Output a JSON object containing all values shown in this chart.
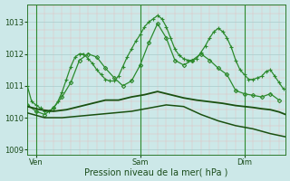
{
  "title": "Pression niveau de la mer( hPa )",
  "bg_color": "#cce8e8",
  "minor_grid_color": "#e8b8b8",
  "major_grid_color": "#aacccc",
  "ylim": [
    1008.85,
    1013.55
  ],
  "yticks": [
    1009,
    1010,
    1011,
    1012,
    1013
  ],
  "xlim": [
    0,
    119
  ],
  "xtick_labels": [
    "Ven",
    "Sam",
    "Dim"
  ],
  "xtick_positions": [
    4,
    52,
    100
  ],
  "vline_x": [
    4,
    52,
    100
  ],
  "series": [
    {
      "x": [
        0,
        2,
        4,
        6,
        8,
        10,
        12,
        14,
        16,
        18,
        20,
        22,
        24,
        26,
        28,
        30,
        32,
        34,
        36,
        38,
        40,
        42,
        44,
        46,
        48,
        50,
        52,
        54,
        56,
        58,
        60,
        62,
        64,
        66,
        68,
        70,
        72,
        74,
        76,
        78,
        80,
        82,
        84,
        86,
        88,
        90,
        92,
        94,
        96,
        98,
        100,
        102,
        104,
        106,
        108,
        110,
        112,
        114,
        116,
        118
      ],
      "y": [
        1011.0,
        1010.5,
        1010.4,
        1010.3,
        1010.2,
        1010.2,
        1010.3,
        1010.5,
        1010.8,
        1011.2,
        1011.6,
        1011.9,
        1012.0,
        1012.0,
        1011.85,
        1011.7,
        1011.5,
        1011.35,
        1011.2,
        1011.15,
        1011.15,
        1011.3,
        1011.6,
        1011.9,
        1012.15,
        1012.4,
        1012.6,
        1012.85,
        1013.0,
        1013.1,
        1013.2,
        1013.1,
        1012.85,
        1012.5,
        1012.15,
        1011.95,
        1011.85,
        1011.8,
        1011.8,
        1011.85,
        1012.05,
        1012.25,
        1012.5,
        1012.7,
        1012.8,
        1012.7,
        1012.5,
        1012.2,
        1011.8,
        1011.5,
        1011.35,
        1011.2,
        1011.2,
        1011.25,
        1011.3,
        1011.45,
        1011.5,
        1011.3,
        1011.1,
        1010.9
      ],
      "marker": "+",
      "color": "#2d8a2d",
      "lw": 0.9,
      "ms": 3.5
    },
    {
      "x": [
        0,
        4,
        8,
        12,
        16,
        20,
        24,
        28,
        32,
        36,
        40,
        44,
        48,
        52,
        56,
        60,
        64,
        68,
        72,
        76,
        80,
        84,
        88,
        92,
        96,
        100,
        104,
        108,
        112,
        116
      ],
      "y": [
        1010.4,
        1010.2,
        1010.1,
        1010.3,
        1010.65,
        1011.1,
        1011.8,
        1012.0,
        1011.9,
        1011.55,
        1011.25,
        1011.0,
        1011.15,
        1011.65,
        1012.35,
        1012.95,
        1012.5,
        1011.8,
        1011.65,
        1011.8,
        1012.0,
        1011.8,
        1011.55,
        1011.35,
        1010.85,
        1010.75,
        1010.7,
        1010.65,
        1010.75,
        1010.55
      ],
      "marker": "D",
      "color": "#2d8a2d",
      "lw": 0.9,
      "ms": 2.2
    },
    {
      "x": [
        0,
        6,
        12,
        18,
        24,
        30,
        36,
        42,
        48,
        54,
        60,
        66,
        72,
        78,
        84,
        90,
        96,
        100,
        104,
        108,
        112,
        116,
        119
      ],
      "y": [
        1010.35,
        1010.25,
        1010.2,
        1010.25,
        1010.35,
        1010.45,
        1010.55,
        1010.55,
        1010.65,
        1010.72,
        1010.82,
        1010.72,
        1010.62,
        1010.55,
        1010.5,
        1010.45,
        1010.38,
        1010.35,
        1010.32,
        1010.28,
        1010.25,
        1010.18,
        1010.1
      ],
      "marker": null,
      "color": "#1a5010",
      "lw": 1.3,
      "ms": 0
    },
    {
      "x": [
        0,
        8,
        16,
        24,
        32,
        40,
        48,
        56,
        64,
        72,
        80,
        88,
        96,
        104,
        112,
        119
      ],
      "y": [
        1010.15,
        1010.0,
        1010.0,
        1010.05,
        1010.1,
        1010.15,
        1010.2,
        1010.3,
        1010.4,
        1010.35,
        1010.1,
        1009.9,
        1009.75,
        1009.65,
        1009.5,
        1009.4
      ],
      "marker": null,
      "color": "#1a5010",
      "lw": 1.1,
      "ms": 0
    }
  ]
}
